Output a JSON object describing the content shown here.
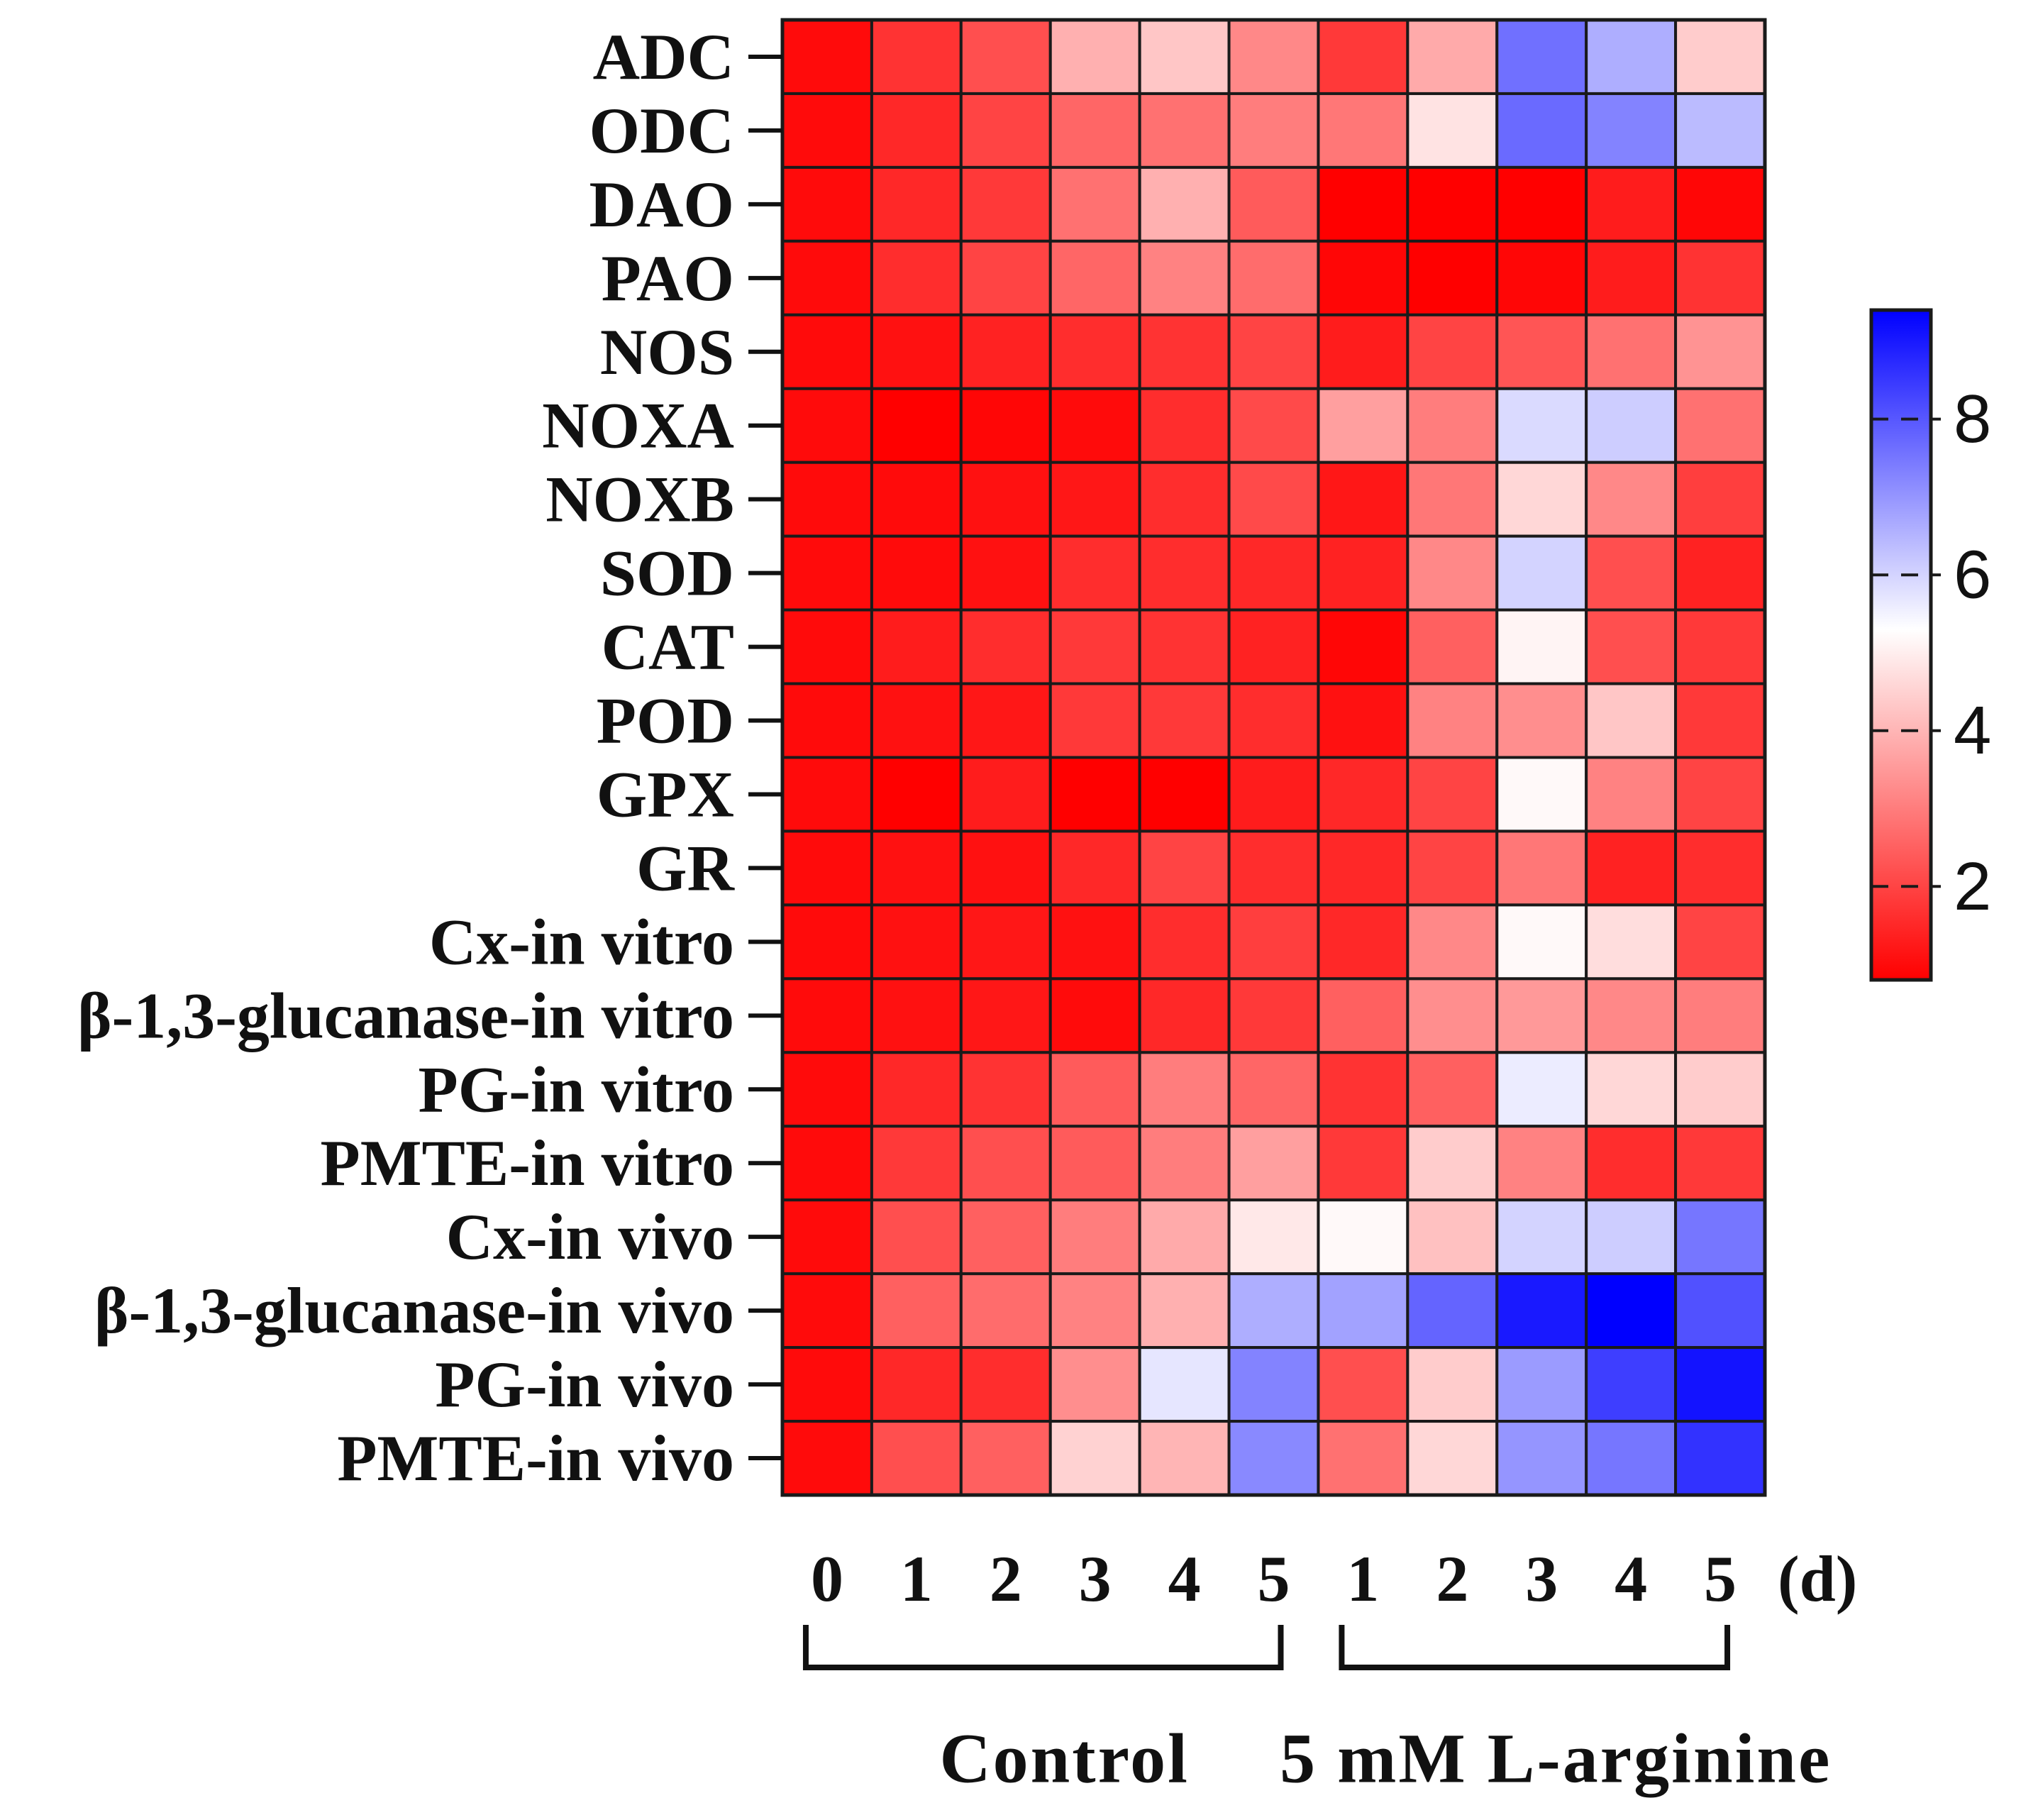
{
  "chart_data": {
    "type": "heatmap",
    "title": "",
    "xlabel": "",
    "ylabel": "",
    "rows": [
      "ADC",
      "ODC",
      "DAO",
      "PAO",
      "NOS",
      "NOXA",
      "NOXB",
      "SOD",
      "CAT",
      "POD",
      "GPX",
      "GR",
      "Cx-in vitro",
      "β-1,3-glucanase-in vitro",
      "PG-in vitro",
      "PMTE-in vitro",
      "Cx-in vivo",
      "β-1,3-glucanase-in vivo",
      "PG-in vivo",
      "PMTE-in vivo"
    ],
    "columns": [
      "0",
      "1",
      "2",
      "3",
      "4",
      "5",
      "1",
      "2",
      "3",
      "4",
      "5"
    ],
    "x_unit": "(d)",
    "groups": [
      {
        "label": "Control",
        "start": 0,
        "end": 5
      },
      {
        "label": "5 mM L-arginine",
        "start": 6,
        "end": 10
      }
    ],
    "values": [
      [
        1.0,
        1.7,
        2.2,
        3.9,
        4.3,
        3.2,
        1.8,
        3.8,
        7.6,
        6.6,
        4.4
      ],
      [
        1.0,
        1.5,
        2.0,
        2.6,
        2.8,
        3.0,
        2.9,
        4.8,
        7.7,
        7.3,
        6.4
      ],
      [
        1.0,
        1.5,
        1.8,
        2.8,
        3.9,
        2.4,
        0.5,
        0.6,
        0.8,
        1.3,
        0.9
      ],
      [
        1.0,
        1.6,
        2.0,
        2.6,
        3.1,
        2.7,
        0.9,
        0.8,
        0.9,
        1.3,
        1.7
      ],
      [
        1.0,
        1.1,
        1.4,
        1.6,
        1.7,
        2.0,
        1.3,
        2.0,
        2.3,
        2.8,
        3.4
      ],
      [
        1.0,
        0.7,
        0.9,
        1.0,
        1.6,
        2.1,
        3.6,
        3.0,
        5.9,
        6.1,
        2.8
      ],
      [
        1.0,
        1.0,
        1.1,
        1.2,
        1.6,
        2.1,
        1.2,
        2.9,
        4.6,
        3.2,
        1.9
      ],
      [
        1.0,
        1.0,
        1.1,
        1.6,
        1.6,
        1.5,
        1.4,
        3.2,
        6.0,
        2.2,
        1.4
      ],
      [
        1.0,
        1.3,
        1.6,
        1.8,
        1.7,
        1.4,
        0.9,
        2.5,
        5.1,
        2.2,
        1.8
      ],
      [
        1.0,
        1.1,
        1.2,
        1.8,
        1.8,
        1.6,
        1.1,
        3.1,
        3.3,
        4.3,
        1.8
      ],
      [
        1.0,
        0.7,
        1.3,
        0.6,
        0.8,
        1.3,
        1.5,
        2.0,
        5.2,
        3.1,
        2.0
      ],
      [
        1.0,
        1.1,
        1.1,
        1.5,
        2.0,
        1.6,
        1.5,
        2.0,
        2.9,
        1.4,
        1.6
      ],
      [
        1.0,
        1.1,
        1.2,
        1.1,
        1.6,
        1.9,
        1.5,
        3.2,
        5.2,
        4.7,
        2.0
      ],
      [
        1.0,
        1.1,
        1.2,
        1.0,
        1.5,
        1.8,
        2.5,
        3.3,
        3.5,
        3.2,
        3.0
      ],
      [
        1.0,
        1.5,
        1.7,
        2.4,
        3.0,
        2.6,
        1.7,
        2.5,
        5.6,
        4.6,
        4.4
      ],
      [
        1.0,
        1.8,
        2.2,
        2.4,
        3.0,
        3.6,
        1.8,
        4.4,
        3.1,
        1.6,
        1.8
      ],
      [
        1.0,
        2.2,
        2.5,
        3.0,
        3.8,
        4.9,
        5.2,
        4.2,
        6.0,
        6.1,
        7.5
      ],
      [
        1.0,
        2.5,
        2.7,
        3.1,
        3.9,
        6.6,
        6.8,
        7.8,
        9.0,
        9.4,
        8.1
      ],
      [
        1.0,
        1.5,
        1.6,
        3.3,
        5.7,
        7.3,
        2.2,
        4.4,
        6.9,
        8.4,
        9.1
      ],
      [
        1.0,
        2.2,
        2.5,
        4.5,
        4.0,
        7.2,
        2.8,
        4.6,
        7.0,
        7.5,
        8.6
      ]
    ],
    "colorbar": {
      "min": 0.8,
      "max": 9.4,
      "ticks": [
        2,
        4,
        6,
        8
      ],
      "tick_labels": [
        "2",
        "4",
        "6",
        "8"
      ],
      "colors": {
        "low": "#ff0000",
        "mid": "#ffffff",
        "high": "#0000ff"
      },
      "mid_value": 5.3
    },
    "grid": true
  }
}
